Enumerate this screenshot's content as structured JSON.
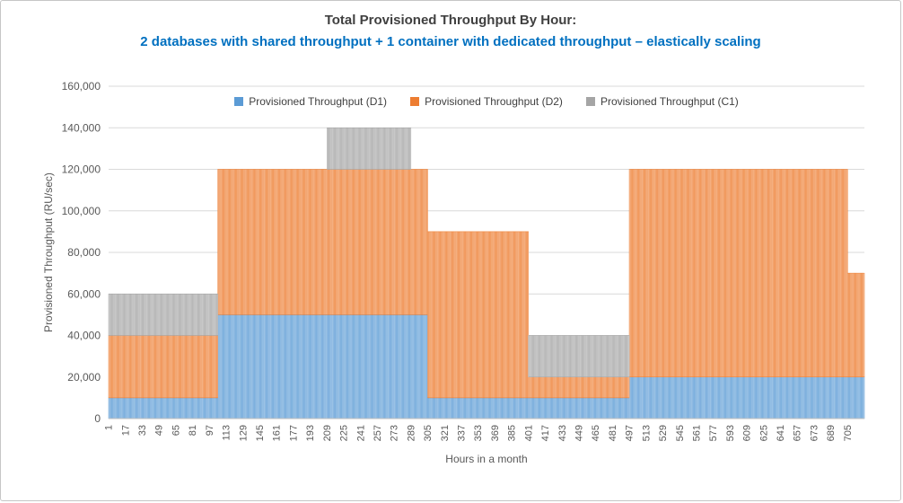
{
  "chart": {
    "title": "Total Provisioned Throughput By Hour:",
    "subtitle": "2 databases with shared throughput + 1 container with dedicated throughput – elastically scaling",
    "title_color": "#404040",
    "subtitle_color": "#0070C0"
  },
  "chart_data": {
    "type": "bar",
    "stacked": true,
    "title": "Total Provisioned Throughput By Hour: 2 databases with shared throughput + 1 container with dedicated throughput – elastically scaling",
    "xlabel": "Hours in a month",
    "ylabel": "Provisioned Throughput (RU/sec)",
    "x_range": [
      1,
      720
    ],
    "ylim": [
      0,
      160000
    ],
    "y_tick_interval": 20000,
    "grid": true,
    "legend_position": "top-center",
    "gridline_color": "#D9D9D9",
    "axis_line_color": "#BFBFBF",
    "y_tick_labels": [
      "0",
      "20,000",
      "40,000",
      "60,000",
      "80,000",
      "100,000",
      "120,000",
      "140,000",
      "160,000"
    ],
    "x_tick_labels": [
      "1",
      "17",
      "33",
      "49",
      "65",
      "81",
      "97",
      "113",
      "129",
      "145",
      "161",
      "177",
      "193",
      "209",
      "225",
      "241",
      "257",
      "273",
      "289",
      "305",
      "321",
      "337",
      "353",
      "369",
      "385",
      "401",
      "417",
      "433",
      "449",
      "465",
      "481",
      "497",
      "513",
      "529",
      "545",
      "561",
      "577",
      "593",
      "609",
      "625",
      "641",
      "657",
      "673",
      "689",
      "705"
    ],
    "series": [
      {
        "name": "Provisioned Throughput (D1)",
        "key": "d1",
        "color": "#5B9BD5",
        "fill": "#BDD7EE"
      },
      {
        "name": "Provisioned Throughput (D2)",
        "key": "d2",
        "color": "#ED7D31",
        "fill": "#F8CBAD"
      },
      {
        "name": "Provisioned Throughput (C1)",
        "key": "c1",
        "color": "#A5A5A5",
        "fill": "#DBDBDB"
      }
    ],
    "segments": [
      {
        "start": 1,
        "end": 104,
        "d1": 10000,
        "d2": 30000,
        "c1": 20000
      },
      {
        "start": 105,
        "end": 208,
        "d1": 50000,
        "d2": 70000,
        "c1": 0
      },
      {
        "start": 209,
        "end": 288,
        "d1": 50000,
        "d2": 70000,
        "c1": 20000
      },
      {
        "start": 289,
        "end": 304,
        "d1": 50000,
        "d2": 70000,
        "c1": 0
      },
      {
        "start": 305,
        "end": 400,
        "d1": 10000,
        "d2": 80000,
        "c1": 0
      },
      {
        "start": 401,
        "end": 496,
        "d1": 10000,
        "d2": 10000,
        "c1": 20000
      },
      {
        "start": 497,
        "end": 704,
        "d1": 20000,
        "d2": 100000,
        "c1": 0
      },
      {
        "start": 705,
        "end": 720,
        "d1": 20000,
        "d2": 50000,
        "c1": 0
      }
    ]
  }
}
